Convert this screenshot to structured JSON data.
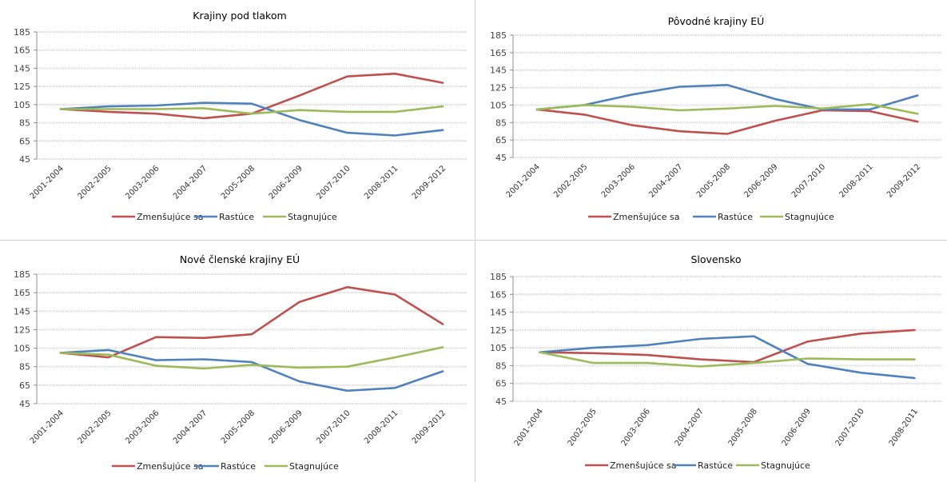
{
  "colors": {
    "decreasing": "#C0504D",
    "growing": "#4F81BD",
    "stagnating": "#9BBB59",
    "grid": "#d9d9d9"
  },
  "chart_data": [
    {
      "type": "line",
      "title": "Krajiny pod tlakom",
      "categories": [
        "2001-2004",
        "2002-2005",
        "2003-2006",
        "2004-2007",
        "2005-2008",
        "2006-2009",
        "2007-2010",
        "2008-2011",
        "2009-2012"
      ],
      "ylim": [
        45,
        185
      ],
      "yticks": [
        45,
        65,
        85,
        105,
        125,
        145,
        165,
        185
      ],
      "grid": true,
      "legend": "bottom",
      "series": [
        {
          "name": "Zmenšujúce sa",
          "values": [
            100,
            97,
            95,
            90,
            95,
            115,
            136,
            139,
            129
          ]
        },
        {
          "name": "Rastúce",
          "values": [
            100,
            103,
            104,
            107,
            106,
            88,
            74,
            71,
            77
          ]
        },
        {
          "name": "Stagnujúce",
          "values": [
            100,
            100,
            100,
            101,
            95,
            99,
            97,
            97,
            103
          ]
        }
      ]
    },
    {
      "type": "line",
      "title": "Pôvodné krajiny EÚ",
      "categories": [
        "2001-2004",
        "2002-2005",
        "2003-2006",
        "2004-2007",
        "2005-2008",
        "2006-2009",
        "2007-2010",
        "2008-2011",
        "2009-2012"
      ],
      "ylim": [
        45,
        185
      ],
      "yticks": [
        45,
        65,
        85,
        105,
        125,
        145,
        165,
        185
      ],
      "grid": true,
      "legend": "bottom",
      "series": [
        {
          "name": "Zmenšujúce sa",
          "values": [
            100,
            94,
            82,
            75,
            72,
            87,
            99,
            98,
            86
          ]
        },
        {
          "name": "Rastúce",
          "values": [
            100,
            105,
            117,
            126,
            128,
            112,
            100,
            100,
            116
          ]
        },
        {
          "name": "Stagnujúce",
          "values": [
            100,
            105,
            103,
            99,
            101,
            104,
            101,
            106,
            95
          ]
        }
      ]
    },
    {
      "type": "line",
      "title": "Nové členské krajiny EÚ",
      "categories": [
        "2001-2004",
        "2002-2005",
        "2003-2006",
        "2004-2007",
        "2005-2008",
        "2006-2009",
        "2007-2010",
        "2008-2011",
        "2009-2012"
      ],
      "ylim": [
        45,
        185
      ],
      "yticks": [
        45,
        65,
        85,
        105,
        125,
        145,
        165,
        185
      ],
      "grid": true,
      "legend": "bottom",
      "series": [
        {
          "name": "Zmenšujúce sa",
          "values": [
            100,
            95,
            117,
            116,
            120,
            155,
            171,
            163,
            131
          ]
        },
        {
          "name": "Rastúce",
          "values": [
            100,
            103,
            92,
            93,
            90,
            69,
            59,
            62,
            80
          ]
        },
        {
          "name": "Stagnujúce",
          "values": [
            100,
            98,
            86,
            83,
            87,
            84,
            85,
            95,
            106
          ]
        }
      ]
    },
    {
      "type": "line",
      "title": "Slovensko",
      "categories": [
        "2001-2004",
        "2002-2005",
        "2003-2006",
        "2004-2007",
        "2005-2008",
        "2006-2009",
        "2007-2010",
        "2008-2011"
      ],
      "ylim": [
        45,
        185
      ],
      "yticks": [
        45,
        65,
        85,
        105,
        125,
        145,
        165,
        185
      ],
      "grid": true,
      "legend": "bottom",
      "series": [
        {
          "name": "Zmenšujúce sa",
          "values": [
            100,
            99,
            97,
            92,
            89,
            112,
            121,
            125
          ]
        },
        {
          "name": "Rastúce",
          "values": [
            100,
            105,
            108,
            115,
            118,
            87,
            77,
            71
          ]
        },
        {
          "name": "Stagnujúce",
          "values": [
            100,
            88,
            88,
            84,
            88,
            93,
            92,
            92
          ]
        }
      ]
    }
  ]
}
